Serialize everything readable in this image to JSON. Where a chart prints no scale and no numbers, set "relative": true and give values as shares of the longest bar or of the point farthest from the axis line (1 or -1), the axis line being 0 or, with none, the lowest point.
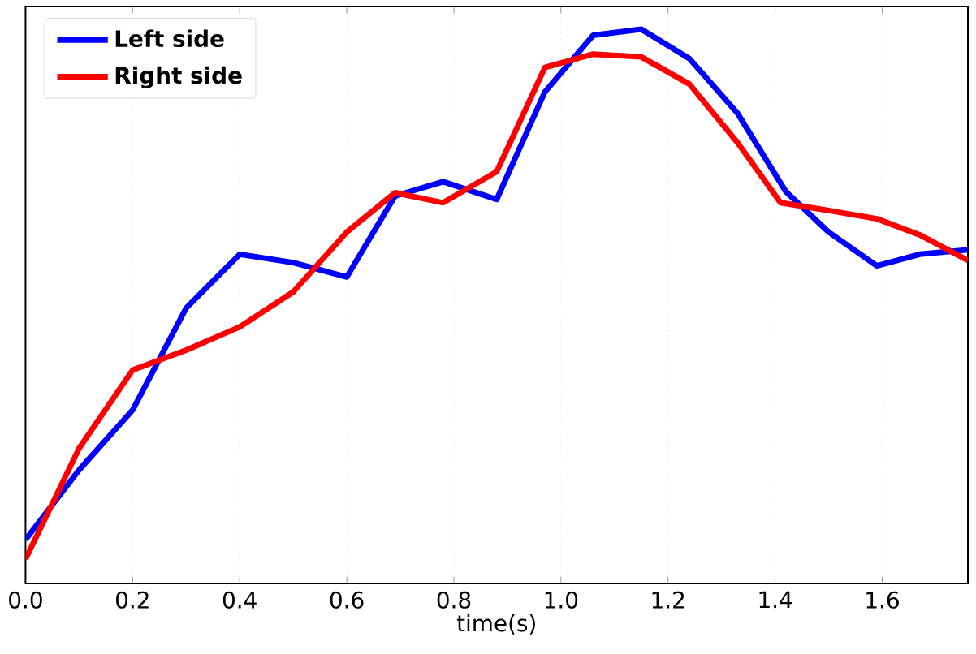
{
  "chart_data": {
    "type": "line",
    "xlabel": "time(s)",
    "relative": true,
    "xlim": [
      0,
      1.76
    ],
    "xticks": [
      {
        "value": 0,
        "label": "0.0"
      },
      {
        "value": 0.2,
        "label": "0.2"
      },
      {
        "value": 0.4,
        "label": "0.4"
      },
      {
        "value": 0.6,
        "label": "0.6"
      },
      {
        "value": 0.8,
        "label": "0.8"
      },
      {
        "value": 1.0,
        "label": "1.0"
      },
      {
        "value": 1.2,
        "label": "1.2"
      },
      {
        "value": 1.4,
        "label": "1.4"
      },
      {
        "value": 1.6,
        "label": "1.6"
      }
    ],
    "grid": true,
    "legend": "top left",
    "line_style": "solid",
    "marker": "none",
    "series": [
      {
        "name": "Left side",
        "color": "#0000ff",
        "x": [
          0,
          0.1,
          0.2,
          0.3,
          0.4,
          0.5,
          0.6,
          0.69,
          0.78,
          0.88,
          0.97,
          1.06,
          1.15,
          1.24,
          1.33,
          1.42,
          1.5,
          1.59,
          1.67,
          1.76
        ],
        "values": [
          0.079,
          0.205,
          0.313,
          0.497,
          0.594,
          0.579,
          0.553,
          0.699,
          0.725,
          0.693,
          0.887,
          0.989,
          1.0,
          0.947,
          0.848,
          0.707,
          0.634,
          0.573,
          0.594,
          0.602
        ]
      },
      {
        "name": "Right side",
        "color": "#ff0000",
        "x": [
          0,
          0.1,
          0.2,
          0.3,
          0.4,
          0.5,
          0.6,
          0.69,
          0.78,
          0.88,
          0.97,
          1.06,
          1.15,
          1.24,
          1.33,
          1.41,
          1.5,
          1.59,
          1.67,
          1.76
        ],
        "values": [
          0.044,
          0.244,
          0.385,
          0.421,
          0.463,
          0.526,
          0.634,
          0.705,
          0.687,
          0.743,
          0.931,
          0.955,
          0.95,
          0.901,
          0.795,
          0.687,
          0.673,
          0.658,
          0.629,
          0.583
        ]
      }
    ]
  }
}
